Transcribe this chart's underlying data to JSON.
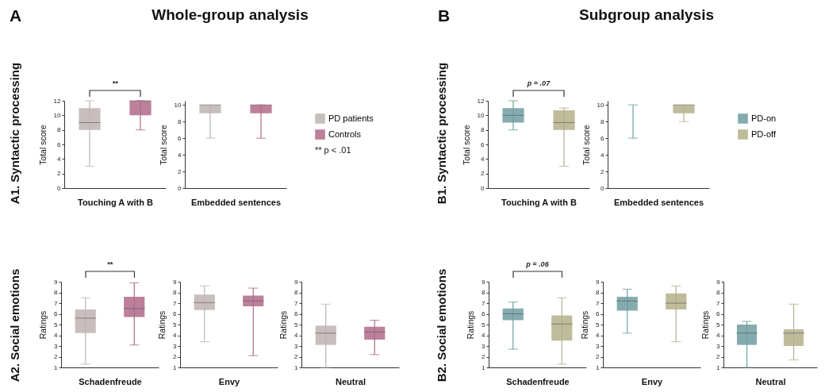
{
  "chart_data": [
    {
      "type": "box",
      "title": "A1. Syntactic processing",
      "xlabel": "Touching A with B",
      "ylabel": "Total score",
      "categories": [
        null
      ],
      "ylim": [
        0,
        12
      ],
      "yticks": [
        0,
        2,
        4,
        6,
        8,
        10,
        12
      ],
      "annotations": [
        "A",
        "Whole-group analysis",
        "**"
      ],
      "series": [
        {
          "color": "#bfb3b3",
          "boxes": [
            {
              "low": 3,
              "q1": 8,
              "median": 9,
              "q3": 11,
              "high": 12
            }
          ]
        },
        {
          "color": "#b06a88",
          "boxes": [
            {
              "low": 8,
              "q1": 10,
              "median": 12,
              "q3": 12,
              "high": 12
            }
          ]
        }
      ]
    },
    {
      "type": "box",
      "xlabel": "Embedded sentences",
      "ylabel": "Total score",
      "categories": [
        null
      ],
      "ylim": [
        0,
        10.5
      ],
      "yticks": [
        0,
        2,
        4,
        6,
        8,
        10
      ],
      "legend": "right",
      "annotations": [
        "** p < .01"
      ],
      "series": [
        {
          "name": "PD patients",
          "color": "#bfb3b3",
          "boxes": [
            {
              "low": 6,
              "q1": 9,
              "median": 10,
              "q3": 10,
              "high": 10
            }
          ]
        },
        {
          "name": "Controls",
          "color": "#b06a88",
          "boxes": [
            {
              "low": 6,
              "q1": 9,
              "median": 10,
              "q3": 10,
              "high": 10
            }
          ]
        }
      ]
    },
    {
      "type": "box",
      "title": "A2. Social emotions",
      "xlabel": "Schadenfreude",
      "ylabel": "Ratings",
      "categories": [
        null
      ],
      "ylim": [
        1,
        9
      ],
      "yticks": [
        1,
        2,
        3,
        4,
        5,
        6,
        7,
        8,
        9
      ],
      "annotations": [
        "**"
      ],
      "series": [
        {
          "color": "#bfb3b3",
          "boxes": [
            {
              "low": 1.3,
              "q1": 4.2,
              "median": 5.6,
              "q3": 6.4,
              "high": 7.5
            }
          ]
        },
        {
          "color": "#b06a88",
          "boxes": [
            {
              "low": 3.1,
              "q1": 5.7,
              "median": 6.5,
              "q3": 7.6,
              "high": 8.9
            }
          ]
        }
      ]
    },
    {
      "type": "box",
      "xlabel": "Envy",
      "ylabel": "Ratings",
      "categories": [
        null
      ],
      "ylim": [
        1,
        9
      ],
      "yticks": [
        1,
        2,
        3,
        4,
        5,
        6,
        7,
        8,
        9
      ],
      "series": [
        {
          "color": "#bfb3b3",
          "boxes": [
            {
              "low": 3.4,
              "q1": 6.35,
              "median": 7.05,
              "q3": 7.8,
              "high": 8.6
            }
          ]
        },
        {
          "color": "#b06a88",
          "boxes": [
            {
              "low": 2.1,
              "q1": 6.7,
              "median": 7.2,
              "q3": 7.7,
              "high": 8.4
            }
          ]
        }
      ]
    },
    {
      "type": "box",
      "xlabel": "Neutral",
      "ylabel": "Ratings",
      "categories": [
        null
      ],
      "ylim": [
        1,
        9
      ],
      "yticks": [
        1,
        2,
        3,
        4,
        5,
        6,
        7,
        8,
        9
      ],
      "series": [
        {
          "color": "#bfb3b3",
          "boxes": [
            {
              "low": 1,
              "q1": 3.1,
              "median": 4.2,
              "q3": 4.9,
              "high": 6.9
            }
          ]
        },
        {
          "color": "#b06a88",
          "boxes": [
            {
              "low": 2.2,
              "q1": 3.6,
              "median": 4.3,
              "q3": 4.8,
              "high": 5.4
            }
          ]
        }
      ]
    },
    {
      "type": "box",
      "title": "B1. Syntactic processing",
      "xlabel": "Touching A with B",
      "ylabel": "Total score",
      "categories": [
        null
      ],
      "ylim": [
        0,
        12
      ],
      "yticks": [
        0,
        2,
        4,
        6,
        8,
        10,
        12
      ],
      "annotations": [
        "B",
        "Subgroup analysis",
        "p = .07"
      ],
      "series": [
        {
          "color": "#6f9ea0",
          "boxes": [
            {
              "low": 8,
              "q1": 9,
              "median": 10,
              "q3": 11,
              "high": 12
            }
          ]
        },
        {
          "color": "#b3b08a",
          "boxes": [
            {
              "low": 3,
              "q1": 8,
              "median": 9,
              "q3": 10.7,
              "high": 11
            }
          ]
        }
      ]
    },
    {
      "type": "box",
      "xlabel": "Embedded sentences",
      "ylabel": "Total score",
      "categories": [
        null
      ],
      "ylim": [
        0,
        10.5
      ],
      "yticks": [
        0,
        2,
        4,
        6,
        8,
        10
      ],
      "legend": "right",
      "series": [
        {
          "name": "PD-on",
          "color": "#6f9ea0",
          "boxes": [
            {
              "low": 6,
              "q1": 10,
              "median": 10,
              "q3": 10,
              "high": 10
            }
          ]
        },
        {
          "name": "PD-off",
          "color": "#b3b08a",
          "boxes": [
            {
              "low": 8,
              "q1": 9,
              "median": 10,
              "q3": 10,
              "high": 10
            }
          ]
        }
      ]
    },
    {
      "type": "box",
      "title": "B2. Social emotions",
      "xlabel": "Schadenfreude",
      "ylabel": "Ratings",
      "categories": [
        null
      ],
      "ylim": [
        1,
        9
      ],
      "yticks": [
        1,
        2,
        3,
        4,
        5,
        6,
        7,
        8,
        9
      ],
      "annotations": [
        "p = .06"
      ],
      "series": [
        {
          "color": "#6f9ea0",
          "boxes": [
            {
              "low": 2.7,
              "q1": 5.4,
              "median": 6,
              "q3": 6.5,
              "high": 7.1
            }
          ]
        },
        {
          "color": "#b3b08a",
          "boxes": [
            {
              "low": 1.3,
              "q1": 3.5,
              "median": 5.05,
              "q3": 5.85,
              "high": 7.5
            }
          ]
        }
      ]
    },
    {
      "type": "box",
      "xlabel": "Envy",
      "ylabel": "Ratings",
      "categories": [
        null
      ],
      "ylim": [
        1,
        9
      ],
      "yticks": [
        1,
        2,
        3,
        4,
        5,
        6,
        7,
        8,
        9
      ],
      "series": [
        {
          "color": "#6f9ea0",
          "boxes": [
            {
              "low": 4.2,
              "q1": 6.3,
              "median": 7.2,
              "q3": 7.6,
              "high": 8.3
            }
          ]
        },
        {
          "color": "#b3b08a",
          "boxes": [
            {
              "low": 3.4,
              "q1": 6.4,
              "median": 7,
              "q3": 7.9,
              "high": 8.6
            }
          ]
        }
      ]
    },
    {
      "type": "box",
      "xlabel": "Neutral",
      "ylabel": "Ratings",
      "categories": [
        null
      ],
      "ylim": [
        1,
        9
      ],
      "yticks": [
        1,
        2,
        3,
        4,
        5,
        6,
        7,
        8,
        9
      ],
      "series": [
        {
          "color": "#6f9ea0",
          "boxes": [
            {
              "low": 1,
              "q1": 3.1,
              "median": 4.2,
              "q3": 5,
              "high": 5.3
            }
          ]
        },
        {
          "color": "#b3b08a",
          "boxes": [
            {
              "low": 1.7,
              "q1": 3,
              "median": 4.2,
              "q3": 4.55,
              "high": 6.9
            }
          ]
        }
      ]
    }
  ]
}
